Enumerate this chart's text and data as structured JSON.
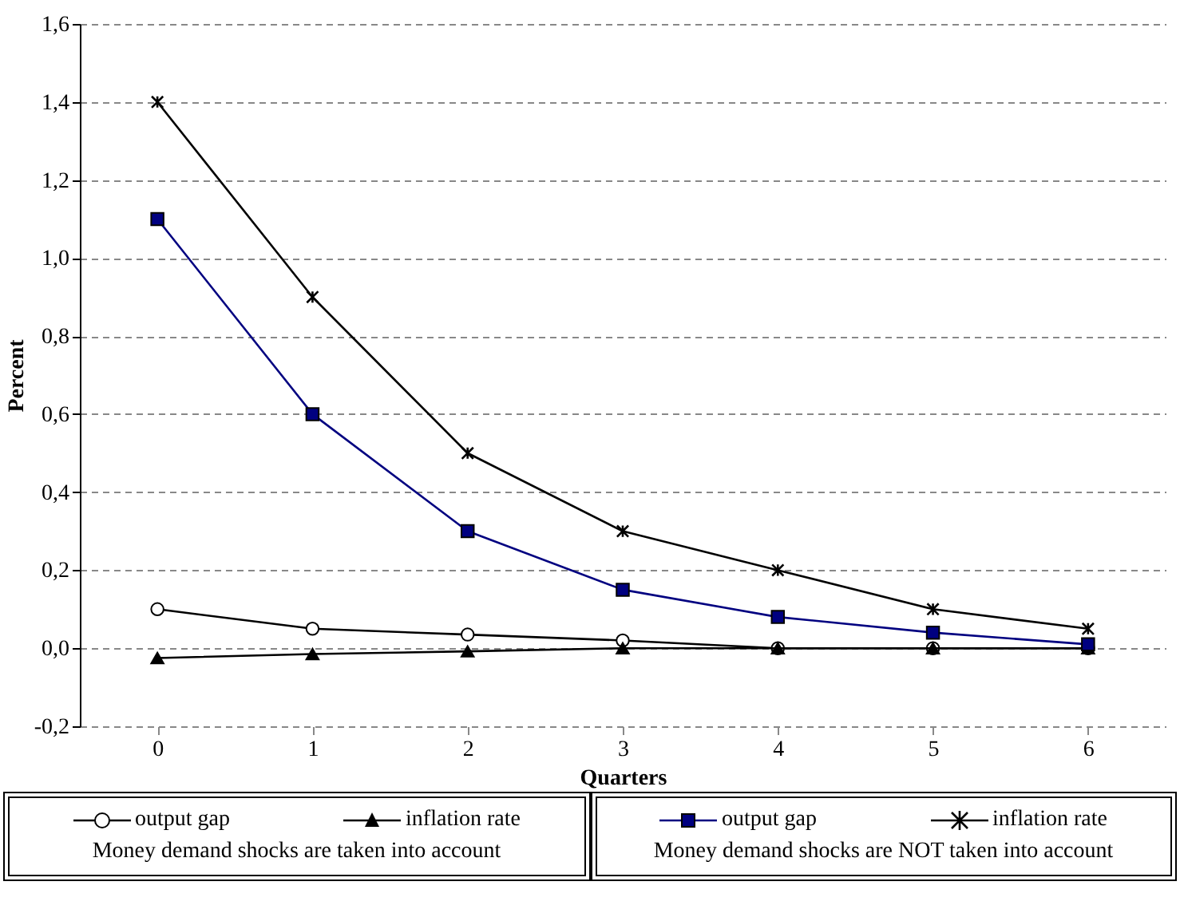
{
  "chart_data": {
    "type": "line",
    "xlabel": "Quarters",
    "ylabel": "Percent",
    "categories": [
      "0",
      "1",
      "2",
      "3",
      "4",
      "5",
      "6"
    ],
    "ylim": [
      -0.2,
      1.6
    ],
    "yticks": [
      {
        "value": -0.2,
        "label": "-0,2"
      },
      {
        "value": 0,
        "label": "0,0"
      },
      {
        "value": 0.2,
        "label": "0,2"
      },
      {
        "value": 0.4,
        "label": "0,4"
      },
      {
        "value": 0.6,
        "label": "0,6"
      },
      {
        "value": 0.8,
        "label": "0,8"
      },
      {
        "value": 1.0,
        "label": "1,0"
      },
      {
        "value": 1.2,
        "label": "1,2"
      },
      {
        "value": 1.4,
        "label": "1,4"
      },
      {
        "value": 1.6,
        "label": "1,6"
      }
    ],
    "grid": "y",
    "legend": "bottom",
    "series": [
      {
        "name": "output gap",
        "color": "#000000",
        "marker": "circle",
        "values": [
          0.1,
          0.05,
          0.035,
          0.02,
          0.0,
          0.0,
          0.0
        ]
      },
      {
        "name": "inflation rate",
        "color": "#000000",
        "marker": "triangle",
        "values": [
          -0.025,
          -0.015,
          -0.008,
          0.0,
          0.0,
          0.0,
          0.0
        ]
      },
      {
        "name": "output gap",
        "color": "#000080",
        "marker": "square",
        "values": [
          1.1,
          0.6,
          0.3,
          0.15,
          0.08,
          0.04,
          0.01
        ]
      },
      {
        "name": "inflation rate",
        "color": "#000000",
        "marker": "cross",
        "values": [
          1.4,
          0.9,
          0.5,
          0.3,
          0.2,
          0.1,
          0.05
        ]
      }
    ],
    "annotations": [
      "Money demand shocks are taken into account",
      "Money demand shocks are NOT taken into account"
    ]
  }
}
